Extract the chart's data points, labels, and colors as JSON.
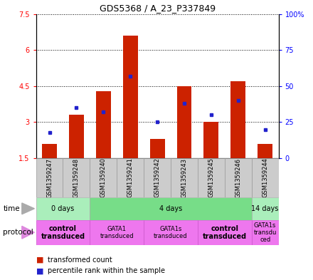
{
  "title": "GDS5368 / A_23_P337849",
  "samples": [
    "GSM1359247",
    "GSM1359248",
    "GSM1359240",
    "GSM1359241",
    "GSM1359242",
    "GSM1359243",
    "GSM1359245",
    "GSM1359246",
    "GSM1359244"
  ],
  "transformed_count": [
    2.1,
    3.3,
    4.3,
    6.6,
    2.3,
    4.5,
    3.0,
    4.7,
    2.1
  ],
  "percentile_rank": [
    18,
    35,
    32,
    57,
    25,
    38,
    30,
    40,
    20
  ],
  "bar_bottom": 1.5,
  "ylim_left": [
    1.5,
    7.5
  ],
  "ylim_right": [
    0,
    100
  ],
  "yticks_left": [
    1.5,
    3.0,
    4.5,
    6.0,
    7.5
  ],
  "ytick_labels_left": [
    "1.5",
    "3",
    "4.5",
    "6",
    "7.5"
  ],
  "yticks_right": [
    0,
    25,
    50,
    75,
    100
  ],
  "ytick_labels_right": [
    "0",
    "25",
    "50",
    "75",
    "100%"
  ],
  "bar_color": "#cc2200",
  "dot_color": "#2222cc",
  "grid_color": "#000000",
  "time_groups": [
    {
      "label": "0 days",
      "start": 0,
      "end": 2,
      "color": "#aaeebb"
    },
    {
      "label": "4 days",
      "start": 2,
      "end": 8,
      "color": "#77dd88"
    },
    {
      "label": "14 days",
      "start": 8,
      "end": 9,
      "color": "#aaeebb"
    }
  ],
  "protocol_groups": [
    {
      "label": "control\ntransduced",
      "start": 0,
      "end": 2,
      "color": "#ee77ee",
      "bold": true
    },
    {
      "label": "GATA1\ntransduced",
      "start": 2,
      "end": 4,
      "color": "#ee77ee",
      "bold": false
    },
    {
      "label": "GATA1s\ntransduced",
      "start": 4,
      "end": 6,
      "color": "#ee77ee",
      "bold": false
    },
    {
      "label": "control\ntransduced",
      "start": 6,
      "end": 8,
      "color": "#ee77ee",
      "bold": true
    },
    {
      "label": "GATA1s\ntransdu\nced",
      "start": 8,
      "end": 9,
      "color": "#ee77ee",
      "bold": false
    }
  ],
  "sample_box_color": "#cccccc",
  "background_color": "#ffffff"
}
